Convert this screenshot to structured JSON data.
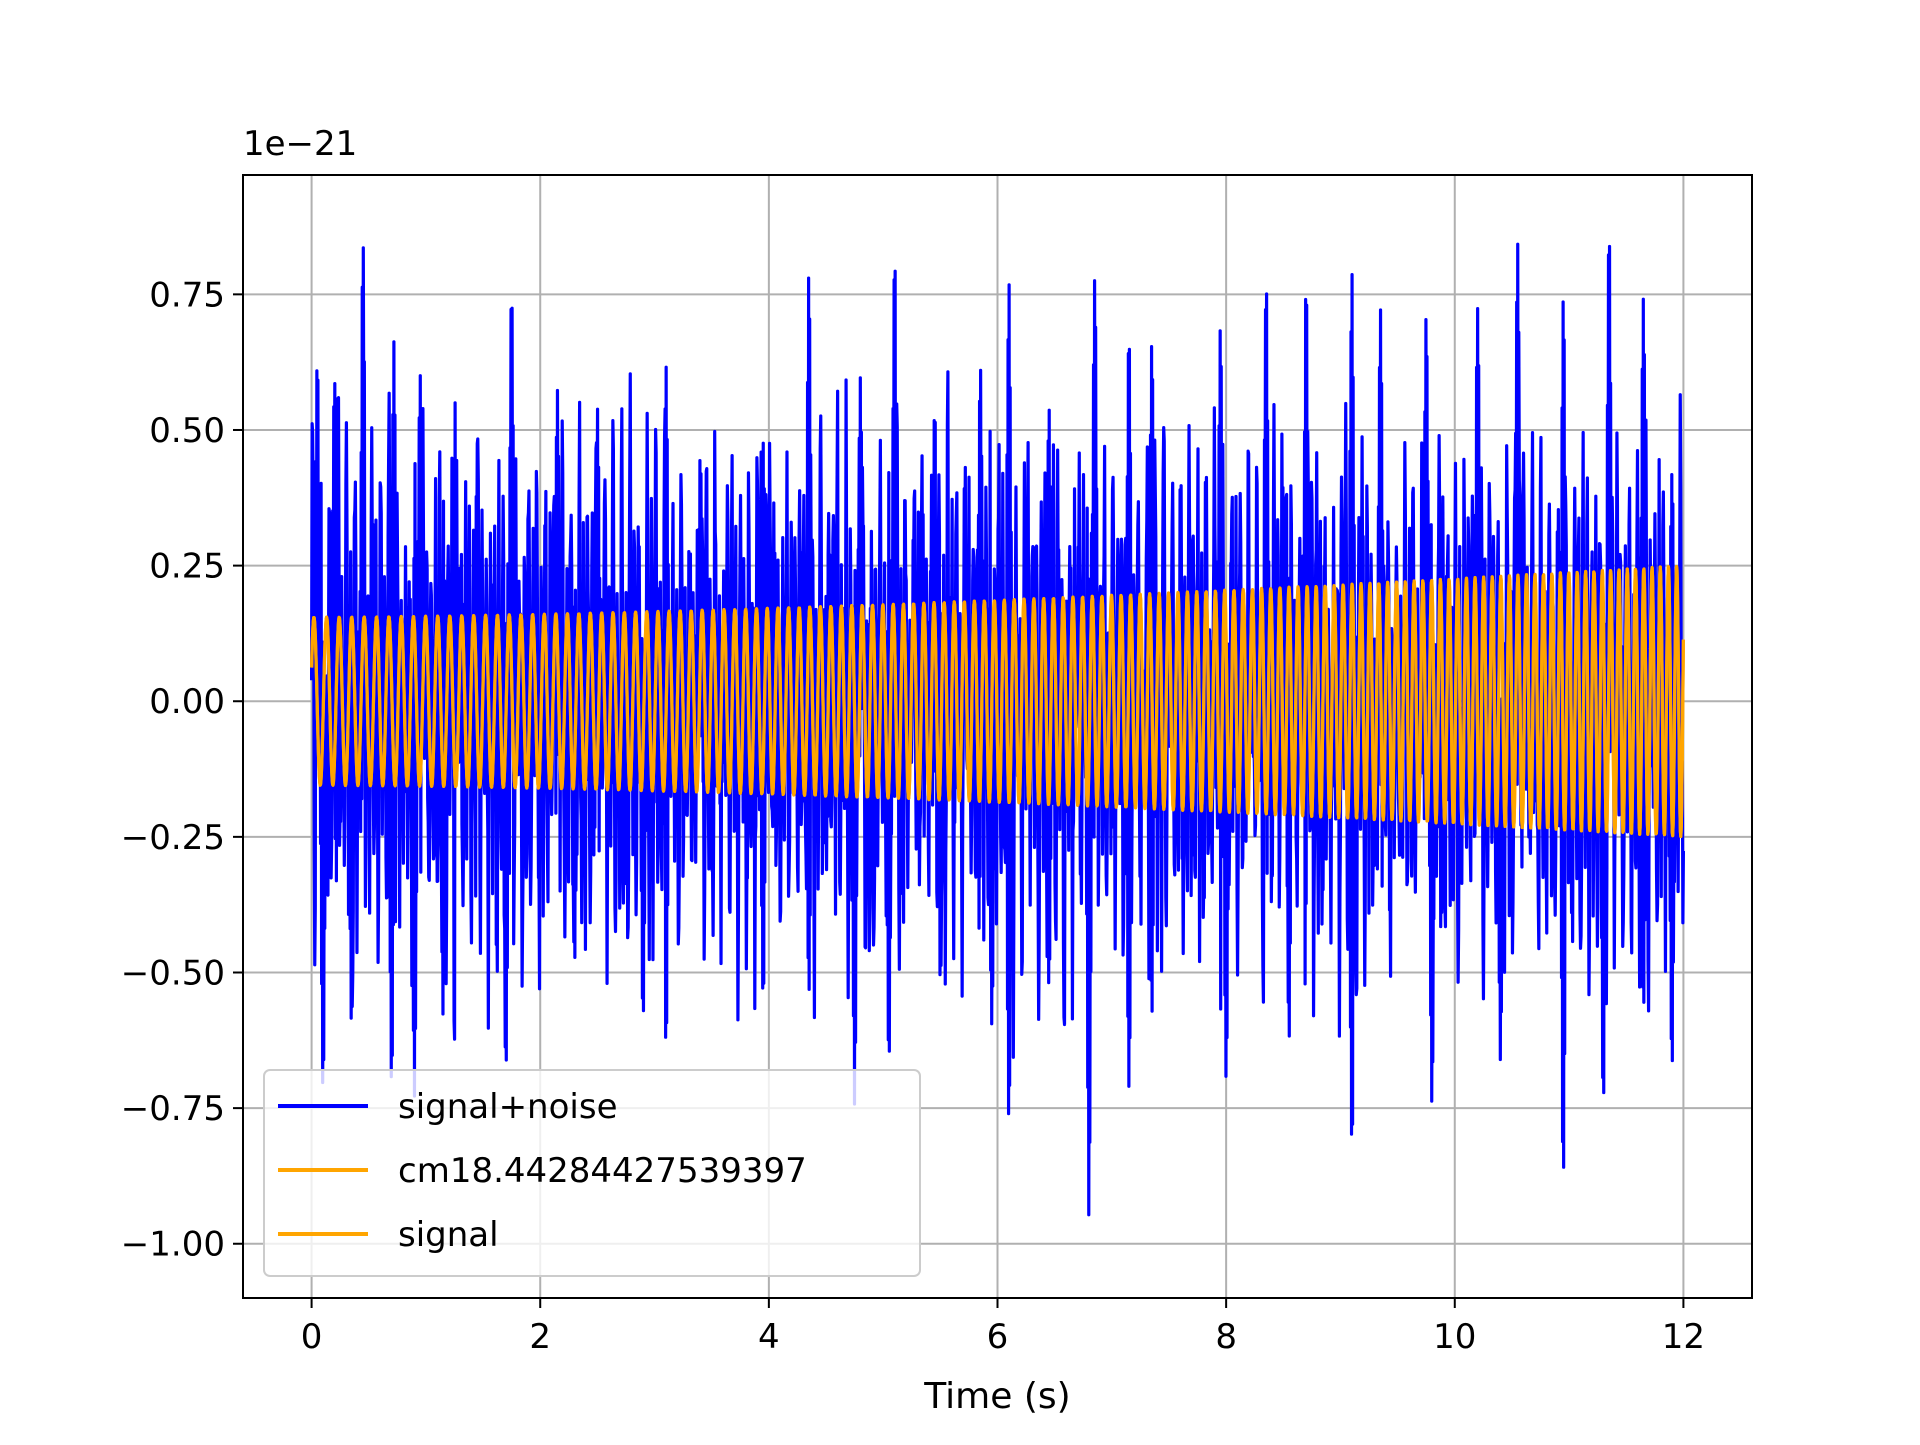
{
  "chart_data": {
    "type": "line",
    "title": "",
    "xlabel": "Time (s)",
    "ylabel": "",
    "y_offset_text": "1e−21",
    "xlim": [
      -0.6,
      12.6
    ],
    "ylim": [
      -1.1,
      0.97
    ],
    "x_ticks": [
      0,
      2,
      4,
      6,
      8,
      10,
      12
    ],
    "x_tick_labels": [
      "0",
      "2",
      "4",
      "6",
      "8",
      "10",
      "12"
    ],
    "y_ticks": [
      -1.0,
      -0.75,
      -0.5,
      -0.25,
      0.0,
      0.25,
      0.5,
      0.75
    ],
    "y_tick_labels": [
      "−1.00",
      "−0.75",
      "−0.50",
      "−0.25",
      "0.00",
      "0.25",
      "0.50",
      "0.75"
    ],
    "grid": true,
    "legend_position": "lower-left",
    "series": [
      {
        "name": "signal+noise",
        "color": "#0000ff",
        "kind": "noisy",
        "t_start": 0,
        "t_end": 12,
        "envelope_peaks": [
          [
            0.05,
            0.65
          ],
          [
            0.2,
            0.6
          ],
          [
            0.45,
            0.85
          ],
          [
            0.72,
            0.67
          ],
          [
            0.95,
            0.62
          ],
          [
            1.25,
            0.59
          ],
          [
            1.45,
            0.49
          ],
          [
            1.75,
            0.78
          ],
          [
            2.15,
            0.59
          ],
          [
            2.5,
            0.56
          ],
          [
            3.1,
            0.63
          ],
          [
            3.4,
            0.46
          ],
          [
            3.95,
            0.5
          ],
          [
            4.35,
            0.82
          ],
          [
            4.8,
            0.61
          ],
          [
            5.1,
            0.85
          ],
          [
            5.45,
            0.55
          ],
          [
            5.85,
            0.62
          ],
          [
            6.1,
            0.78
          ],
          [
            6.45,
            0.55
          ],
          [
            6.85,
            0.81
          ],
          [
            7.15,
            0.7
          ],
          [
            7.35,
            0.69
          ],
          [
            7.95,
            0.7
          ],
          [
            8.35,
            0.79
          ],
          [
            8.7,
            0.8
          ],
          [
            9.1,
            0.81
          ],
          [
            9.35,
            0.74
          ],
          [
            9.75,
            0.73
          ],
          [
            10.2,
            0.75
          ],
          [
            10.55,
            0.87
          ],
          [
            10.95,
            0.75
          ],
          [
            11.35,
            0.88
          ],
          [
            11.65,
            0.77
          ],
          [
            11.9,
            0.42
          ]
        ],
        "envelope_troughs": [
          [
            0.1,
            -0.74
          ],
          [
            0.35,
            -0.62
          ],
          [
            0.7,
            -0.71
          ],
          [
            0.9,
            -0.75
          ],
          [
            1.15,
            -0.58
          ],
          [
            1.7,
            -0.7
          ],
          [
            2.3,
            -0.5
          ],
          [
            2.9,
            -0.6
          ],
          [
            3.1,
            -0.65
          ],
          [
            3.95,
            -0.56
          ],
          [
            4.35,
            -0.55
          ],
          [
            4.75,
            -0.75
          ],
          [
            5.05,
            -0.67
          ],
          [
            5.5,
            -0.54
          ],
          [
            5.95,
            -0.62
          ],
          [
            6.1,
            -0.81
          ],
          [
            6.45,
            -0.53
          ],
          [
            6.8,
            -0.96
          ],
          [
            7.15,
            -0.73
          ],
          [
            7.35,
            -0.58
          ],
          [
            8.0,
            -0.73
          ],
          [
            8.55,
            -0.63
          ],
          [
            9.1,
            -0.85
          ],
          [
            9.8,
            -0.77
          ],
          [
            10.4,
            -0.68
          ],
          [
            10.95,
            -0.91
          ],
          [
            11.3,
            -0.77
          ],
          [
            11.65,
            -0.59
          ],
          [
            11.9,
            -0.7
          ]
        ]
      },
      {
        "name": "cm18.44284427539397",
        "color": "#ffa500",
        "kind": "chirp",
        "t_start": 0,
        "t_end": 12,
        "amplitude_start": 0.155,
        "amplitude_end": 0.25,
        "frequency_start_hz": 9,
        "frequency_end_hz": 14
      },
      {
        "name": "signal",
        "color": "#ffa500",
        "kind": "chirp",
        "t_start": 0,
        "t_end": 12,
        "amplitude_start": 0.155,
        "amplitude_end": 0.25,
        "frequency_start_hz": 9,
        "frequency_end_hz": 14
      }
    ]
  }
}
